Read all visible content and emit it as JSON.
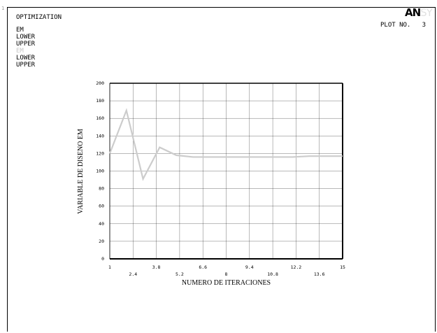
{
  "header": {
    "corner_index": "1",
    "title": "OPTIMIZATION",
    "legend": [
      "EM",
      "LOWER",
      "UPPER",
      "EM",
      "LOWER",
      "UPPER"
    ],
    "logo_bold": "AN",
    "logo_ghost": "SY",
    "plot_no": "PLOT NO.   3"
  },
  "colors": {
    "series": "#cccccc",
    "legend_faded": "#c8c8c8",
    "grid": "#000000"
  },
  "chart_data": {
    "type": "line",
    "xlabel": "NUMERO DE ITERACIONES",
    "ylabel": "VARIABLE DE DISENO EM",
    "xlim": [
      1,
      15
    ],
    "ylim": [
      0,
      200
    ],
    "xticks_row1": [
      "1",
      "3.8",
      "6.6",
      "9.4",
      "12.2",
      "15"
    ],
    "xticks_row1_values": [
      1,
      3.8,
      6.6,
      9.4,
      12.2,
      15
    ],
    "xticks_row2": [
      "2.4",
      "5.2",
      "8",
      "10.8",
      "13.6"
    ],
    "xticks_row2_values": [
      2.4,
      5.2,
      8,
      10.8,
      13.6
    ],
    "yticks": [
      "0",
      "20",
      "40",
      "60",
      "80",
      "100",
      "120",
      "140",
      "160",
      "180",
      "200"
    ],
    "yticks_values": [
      0,
      20,
      40,
      60,
      80,
      100,
      120,
      140,
      160,
      180,
      200
    ],
    "grid": true,
    "series": [
      {
        "x": [
          1,
          2,
          3,
          4,
          5,
          6,
          7,
          8,
          9,
          10,
          11,
          12,
          13,
          14,
          15
        ],
        "values": [
          120,
          169,
          91,
          127,
          118,
          116,
          116,
          116,
          116,
          116,
          116,
          116,
          117,
          117,
          117
        ]
      }
    ]
  }
}
